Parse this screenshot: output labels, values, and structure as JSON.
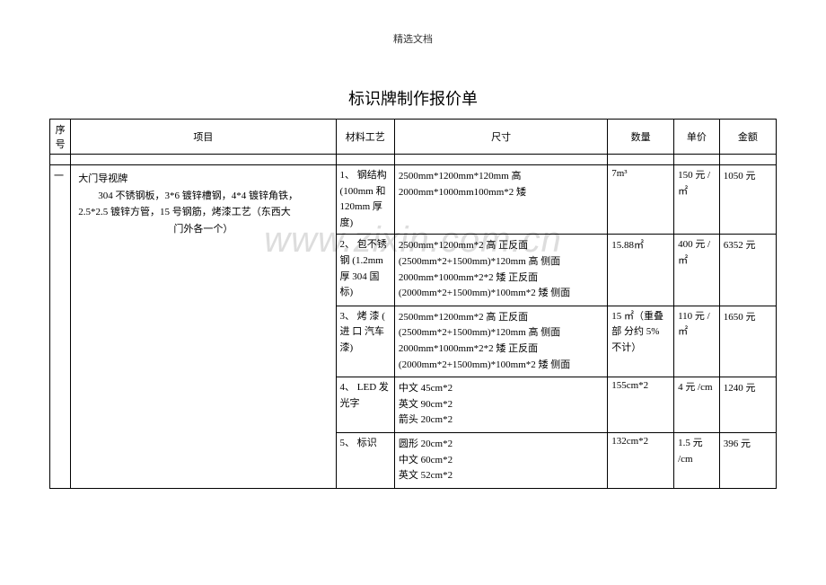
{
  "header_tag": "精选文档",
  "title": "标识牌制作报价单",
  "watermark": "www.zixin.com.cn",
  "headers": {
    "seq": "序号",
    "project": "项目",
    "material": "材料工艺",
    "size": "尺寸",
    "qty": "数量",
    "unit_price": "单价",
    "amount": "金额"
  },
  "rows": [
    {
      "seq": "一",
      "project_line1": "大门导视牌",
      "project_line2": "304 不锈钢板，3*6 镀锌槽钢，4*4 镀锌角铁，",
      "project_line3": "2.5*2.5 镀锌方管，15 号钢筋，烤漆工艺（东西大",
      "project_line4": "门外各一个）",
      "material": "1、 钢结构 (100mm 和 120mm 厚度)",
      "size_l1": "2500mm*1200mm*120mm 高",
      "size_l2": "2000mm*1000mm100mm*2 矮",
      "qty": "7m³",
      "unit_price": "150 元 / ㎡",
      "amount": "1050 元"
    },
    {
      "material": "2、 包不锈钢 (1.2mm 厚 304 国标)",
      "size_l1": "2500mm*1200mm*2 高  正反面",
      "size_l2": "(2500mm*2+1500mm)*120mm 高  侧面",
      "size_l3": "2000mm*1000mm*2*2 矮  正反面",
      "size_l4": "(2000mm*2+1500mm)*100mm*2 矮  侧面",
      "qty": "15.88㎡",
      "unit_price": "400 元 / ㎡",
      "amount": "6352 元"
    },
    {
      "material": "3、 烤 漆 ( 进 口 汽车漆)",
      "size_l1": "2500mm*1200mm*2 高  正反面",
      "size_l2": "(2500mm*2+1500mm)*120mm 高  侧面",
      "size_l3": "2000mm*1000mm*2*2 矮  正反面",
      "size_l4": "(2000mm*2+1500mm)*100mm*2 矮  侧面",
      "qty": "15 ㎡（重叠 部 分约 5% 不计）",
      "unit_price": "110 元 / ㎡",
      "amount": "1650 元"
    },
    {
      "material": "4、 LED 发光字",
      "size_l1": "中文 45cm*2",
      "size_l2": "英文 90cm*2",
      "size_l3": "箭头 20cm*2",
      "qty": "155cm*2",
      "unit_price": "4 元 /cm",
      "amount": "1240 元"
    },
    {
      "material": "5、 标识",
      "size_l1": "圆形 20cm*2",
      "size_l2": "中文 60cm*2",
      "size_l3": "英文 52cm*2",
      "qty": "132cm*2",
      "unit_price": "1.5 元 /cm",
      "amount": "396 元"
    }
  ]
}
